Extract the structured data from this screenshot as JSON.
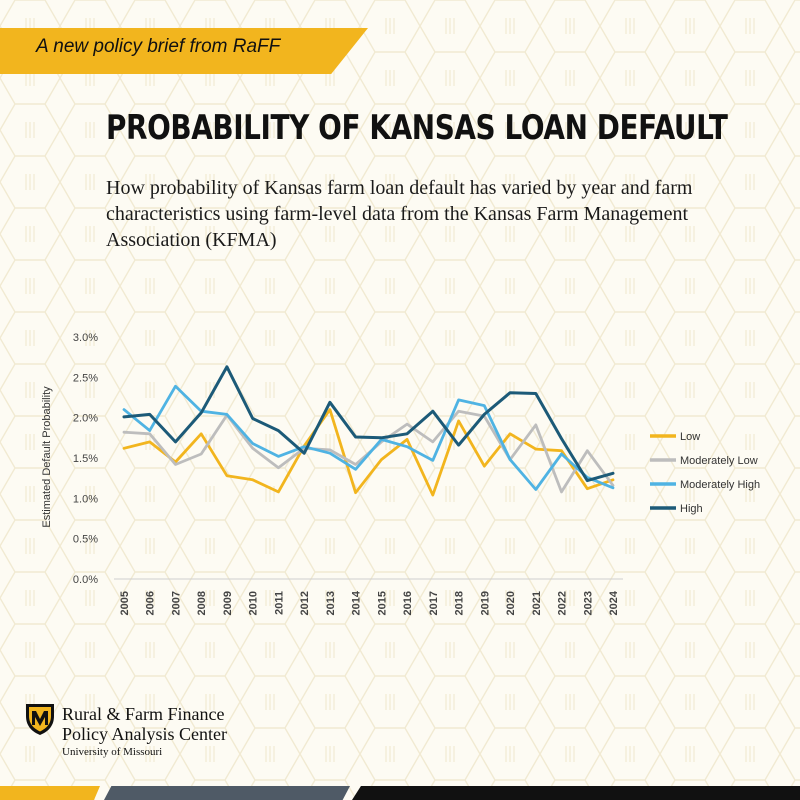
{
  "banner": {
    "text": "A new policy brief from RaFF"
  },
  "title": "PROBABILITY OF KANSAS LOAN DEFAULT",
  "subtitle": "How probability of Kansas farm loan default has varied by year and farm characteristics using farm-level data from the Kansas Farm Management Association (KFMA)",
  "organization": {
    "line1": "Rural & Farm Finance",
    "line2": "Policy Analysis Center",
    "sub": "University of Missouri"
  },
  "colors": {
    "accent_yellow": "#f2b51e",
    "low": "#f2b51e",
    "moderately_low": "#bdbdbd",
    "moderately_high": "#4fb3e3",
    "high": "#1c5a78"
  },
  "chart_data": {
    "type": "line",
    "title": "",
    "xlabel": "",
    "ylabel": "Estimated Default Probability",
    "x": [
      "2005",
      "2006",
      "2007",
      "2008",
      "2009",
      "2010",
      "2011",
      "2012",
      "2013",
      "2014",
      "2015",
      "2016",
      "2017",
      "2018",
      "2019",
      "2020",
      "2021",
      "2022",
      "2023",
      "2024"
    ],
    "ylim": [
      0,
      3.0
    ],
    "yticks": [
      "0.0%",
      "0.5%",
      "1.0%",
      "1.5%",
      "2.0%",
      "2.5%",
      "3.0%"
    ],
    "grid": false,
    "legend_position": "right",
    "series": [
      {
        "name": "Low",
        "color": "#f2b51e",
        "values": [
          1.62,
          1.7,
          1.45,
          1.8,
          1.28,
          1.23,
          1.08,
          1.65,
          2.1,
          1.07,
          1.48,
          1.73,
          1.04,
          1.96,
          1.4,
          1.8,
          1.61,
          1.59,
          1.12,
          1.23
        ]
      },
      {
        "name": "Moderately Low",
        "color": "#bdbdbd",
        "values": [
          1.82,
          1.8,
          1.42,
          1.55,
          2.03,
          1.62,
          1.38,
          1.62,
          1.6,
          1.42,
          1.7,
          1.92,
          1.7,
          2.08,
          2.02,
          1.48,
          1.91,
          1.08,
          1.59,
          1.16
        ]
      },
      {
        "name": "Moderately High",
        "color": "#4fb3e3",
        "values": [
          2.1,
          1.84,
          2.39,
          2.08,
          2.04,
          1.68,
          1.52,
          1.64,
          1.56,
          1.36,
          1.73,
          1.64,
          1.47,
          2.22,
          2.15,
          1.48,
          1.11,
          1.55,
          1.26,
          1.13
        ]
      },
      {
        "name": "High",
        "color": "#1c5a78",
        "values": [
          2.01,
          2.04,
          1.7,
          2.06,
          2.63,
          1.99,
          1.84,
          1.56,
          2.19,
          1.76,
          1.75,
          1.8,
          2.08,
          1.66,
          2.04,
          2.31,
          2.3,
          1.74,
          1.22,
          1.31
        ]
      }
    ]
  }
}
